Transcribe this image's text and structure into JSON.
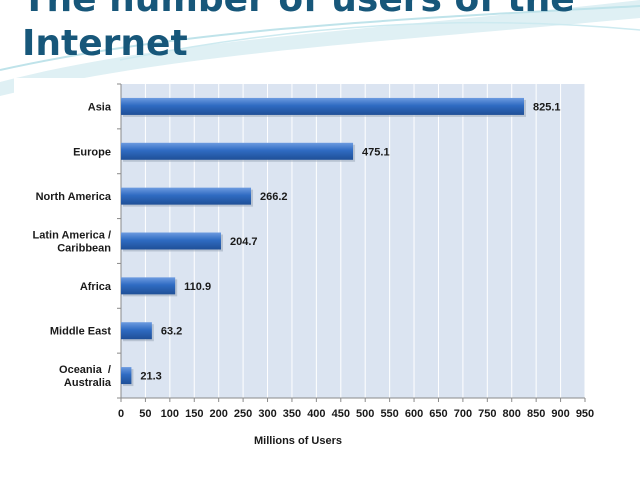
{
  "slide": {
    "title": "The number of users of the Internet"
  },
  "colors": {
    "bar": "#2f6bc2",
    "bar_light": "#6d9be0",
    "bar_dark": "#1f4f97",
    "plot_bg": "#dbe4f1",
    "grid": "#ffffff",
    "title": "#17577a"
  },
  "chart_data": {
    "type": "bar",
    "orientation": "horizontal",
    "title": "",
    "xlabel": "Millions of Users",
    "ylabel": "",
    "categories": [
      [
        "Asia"
      ],
      [
        "Europe"
      ],
      [
        "North America"
      ],
      [
        "Latin America /",
        "Caribbean"
      ],
      [
        "Africa"
      ],
      [
        "Middle East"
      ],
      [
        "Oceania  /",
        "Australia"
      ]
    ],
    "values": [
      825.1,
      475.1,
      266.2,
      204.7,
      110.9,
      63.2,
      21.3
    ],
    "value_labels": [
      "825.1",
      "475.1",
      "266.2",
      "204.7",
      "110.9",
      "63.2",
      "21.3"
    ],
    "xlim": [
      0,
      950
    ],
    "xticks": [
      0,
      50,
      100,
      150,
      200,
      250,
      300,
      350,
      400,
      450,
      500,
      550,
      600,
      650,
      700,
      750,
      800,
      850,
      900,
      950
    ],
    "grid": true,
    "legend": "none"
  }
}
